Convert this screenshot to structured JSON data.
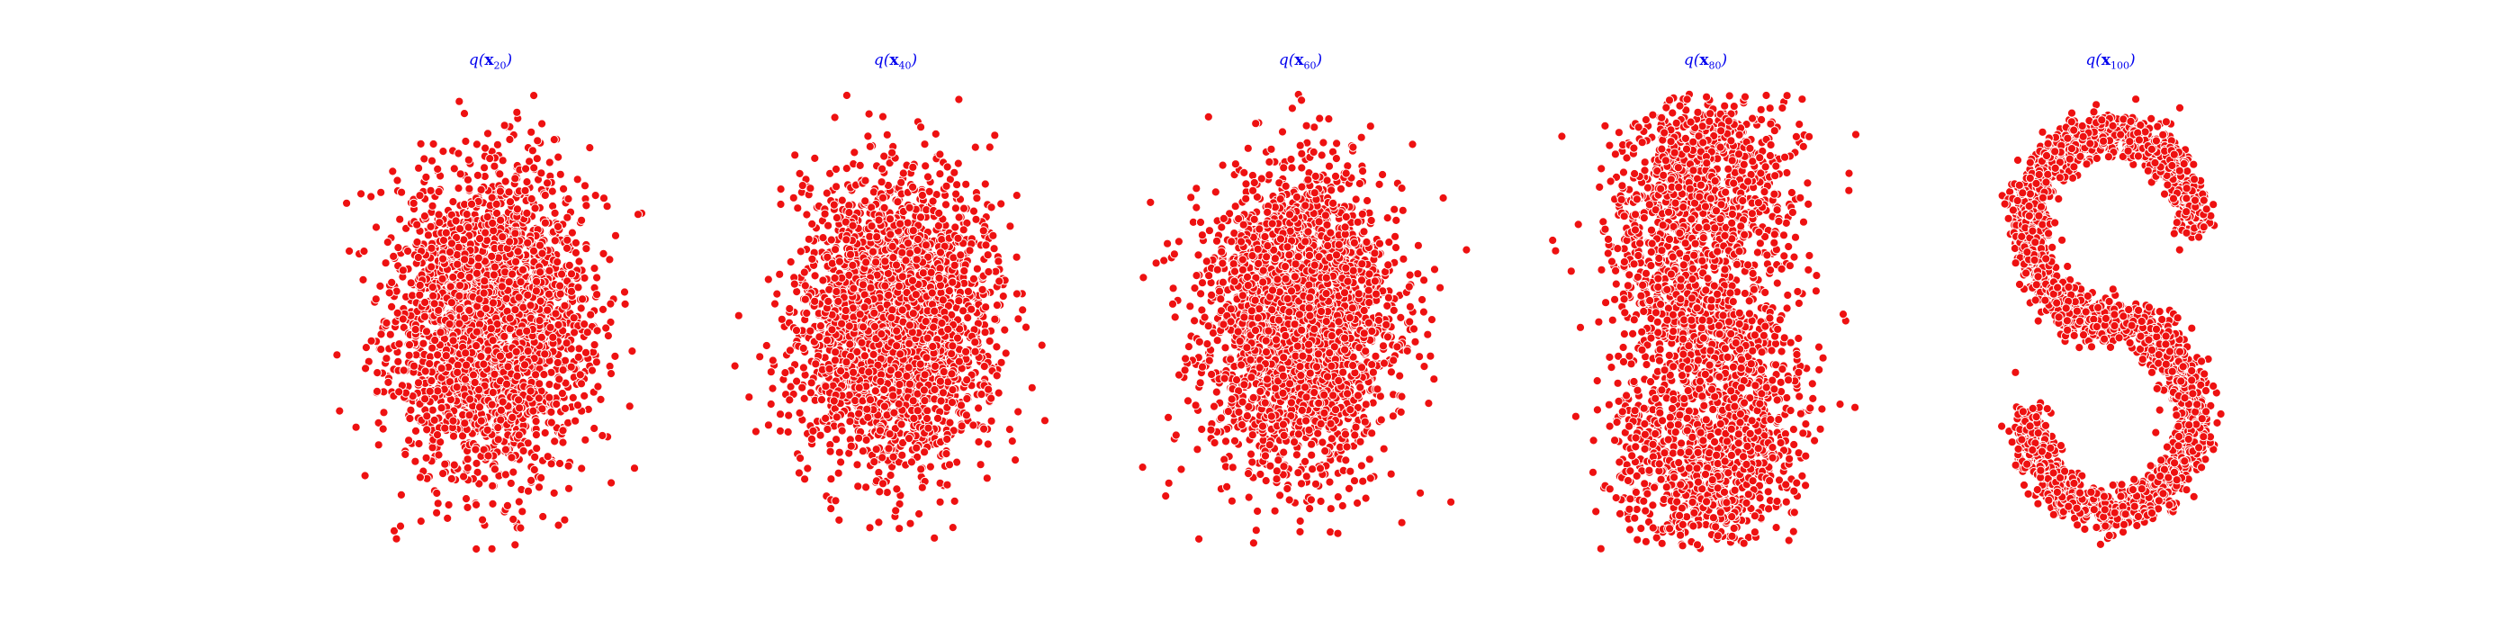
{
  "figure": {
    "point_color": "#ee1111",
    "edge_color": "#ffffff",
    "title_color": "#0000ee"
  },
  "chart_data": [
    {
      "type": "scatter",
      "title_prefix": "q(",
      "title_var": "x",
      "title_sub": "20",
      "title_suffix": ")",
      "axes": "off",
      "grid": false,
      "shape": "gaussian",
      "n_points": 2600,
      "xlim": [
        -2.2,
        2.2
      ],
      "ylim": [
        -2.6,
        2.6
      ],
      "spread": [
        0.62,
        0.85
      ]
    },
    {
      "type": "scatter",
      "title_prefix": "q(",
      "title_var": "x",
      "title_sub": "40",
      "title_suffix": ")",
      "axes": "off",
      "grid": false,
      "shape": "gaussian",
      "n_points": 2600,
      "xlim": [
        -2.2,
        2.2
      ],
      "ylim": [
        -2.6,
        2.6
      ],
      "spread": [
        0.6,
        0.8
      ]
    },
    {
      "type": "scatter",
      "title_prefix": "q(",
      "title_var": "x",
      "title_sub": "60",
      "title_suffix": ")",
      "axes": "off",
      "grid": false,
      "shape": "gaussian",
      "n_points": 2600,
      "xlim": [
        -2.2,
        2.2
      ],
      "ylim": [
        -2.6,
        2.6
      ],
      "spread": [
        0.6,
        0.85
      ]
    },
    {
      "type": "scatter",
      "title_prefix": "q(",
      "title_var": "x",
      "title_sub": "80",
      "title_suffix": ")",
      "axes": "off",
      "grid": false,
      "shape": "blurred-s",
      "n_points": 2600,
      "xlim": [
        -2.2,
        2.2
      ],
      "ylim": [
        -2.6,
        2.6
      ],
      "spread": [
        0.45,
        0.45
      ]
    },
    {
      "type": "scatter",
      "title_prefix": "q(",
      "title_var": "x",
      "title_sub": "100",
      "title_suffix": ")",
      "axes": "off",
      "grid": false,
      "shape": "s-curve",
      "n_points": 2600,
      "xlim": [
        -2.2,
        2.2
      ],
      "ylim": [
        -2.6,
        2.6
      ],
      "spread": [
        0.13,
        0.13
      ]
    }
  ]
}
